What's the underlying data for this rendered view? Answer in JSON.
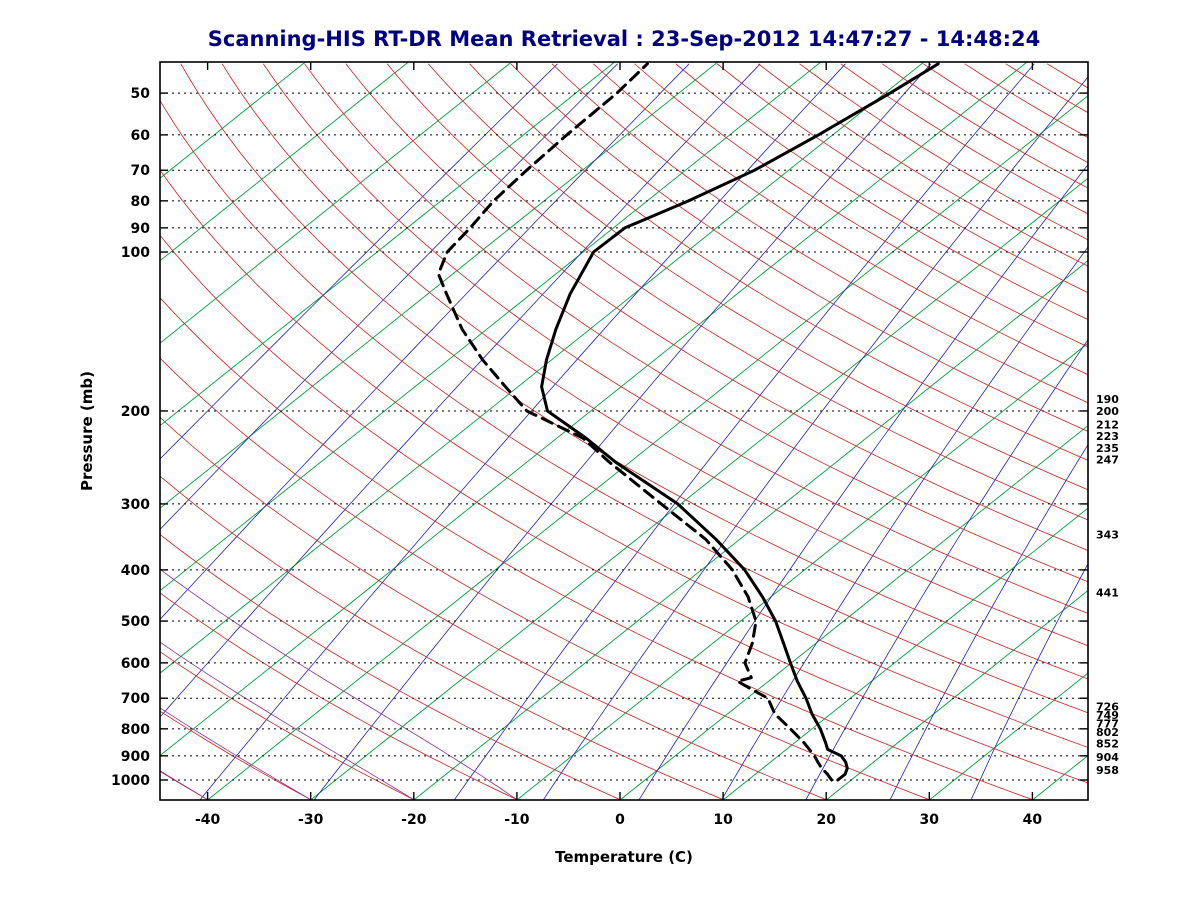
{
  "figure": {
    "background": "#ffffff",
    "title_color": "#000080",
    "axis_color": "#000000",
    "profile_color": "#000000"
  },
  "chart_data": {
    "type": "line",
    "title": "Scanning-HIS RT-DR Mean Retrieval : 23-Sep-2012 14:47:27 - 14:48:24",
    "xlabel": "Temperature (C)",
    "ylabel": "Pressure (mb)",
    "x_ticks": [
      -40,
      -30,
      -20,
      -10,
      0,
      10,
      20,
      30,
      40
    ],
    "y_ticks": [
      50,
      60,
      70,
      80,
      90,
      100,
      200,
      300,
      400,
      500,
      600,
      700,
      800,
      900,
      1000
    ],
    "x_range_bottom_edge": [
      -44.6,
      45.4
    ],
    "pressure_range": [
      44,
      1090
    ],
    "grid": "dotted-isobars",
    "legend": "none",
    "projection": "skew-t-log-p",
    "right_pressure_labels": [
      "190",
      "200",
      "212",
      "223",
      "235",
      "247",
      "343",
      "441",
      "726",
      "749",
      "777",
      "802",
      "852",
      "904",
      "958"
    ],
    "series": [
      {
        "name": "temperature",
        "style": "solid",
        "color": "#000000",
        "points": [
          [
            1000,
            18.7
          ],
          [
            975,
            18.7
          ],
          [
            950,
            18.2
          ],
          [
            925,
            17.3
          ],
          [
            900,
            16.1
          ],
          [
            875,
            14.0
          ],
          [
            850,
            13.0
          ],
          [
            800,
            10.8
          ],
          [
            750,
            8.2
          ],
          [
            700,
            5.7
          ],
          [
            650,
            2.8
          ],
          [
            600,
            -0.1
          ],
          [
            550,
            -3.2
          ],
          [
            500,
            -6.6
          ],
          [
            450,
            -10.8
          ],
          [
            400,
            -15.8
          ],
          [
            350,
            -22.3
          ],
          [
            300,
            -30.3
          ],
          [
            250,
            -41.4
          ],
          [
            225,
            -47.2
          ],
          [
            200,
            -54.2
          ],
          [
            180,
            -57.7
          ],
          [
            160,
            -60.5
          ],
          [
            140,
            -63.3
          ],
          [
            120,
            -66.2
          ],
          [
            100,
            -69.0
          ],
          [
            90,
            -68.9
          ],
          [
            80,
            -66.0
          ],
          [
            70,
            -63.3
          ],
          [
            60,
            -61.4
          ],
          [
            50,
            -59.5
          ],
          [
            44,
            -58.4
          ]
        ]
      },
      {
        "name": "dew_point",
        "style": "dashed",
        "color": "#000000",
        "points": [
          [
            1000,
            18.1
          ],
          [
            975,
            17.0
          ],
          [
            950,
            15.7
          ],
          [
            925,
            14.6
          ],
          [
            900,
            13.5
          ],
          [
            850,
            10.9
          ],
          [
            800,
            7.9
          ],
          [
            750,
            4.6
          ],
          [
            700,
            2.0
          ],
          [
            675,
            -0.5
          ],
          [
            650,
            -3.0
          ],
          [
            640,
            -2.1
          ],
          [
            600,
            -4.5
          ],
          [
            550,
            -6.2
          ],
          [
            500,
            -8.5
          ],
          [
            450,
            -12.2
          ],
          [
            400,
            -17.0
          ],
          [
            350,
            -23.3
          ],
          [
            300,
            -31.9
          ],
          [
            250,
            -42.0
          ],
          [
            225,
            -47.5
          ],
          [
            200,
            -56.2
          ],
          [
            180,
            -61.2
          ],
          [
            160,
            -66.7
          ],
          [
            140,
            -72.4
          ],
          [
            120,
            -78.2
          ],
          [
            110,
            -81.4
          ],
          [
            100,
            -83.2
          ],
          [
            90,
            -83.9
          ],
          [
            80,
            -84.9
          ],
          [
            70,
            -85.4
          ],
          [
            60,
            -85.8
          ],
          [
            50,
            -86.0
          ],
          [
            44,
            -86.6
          ]
        ]
      }
    ],
    "background_lines": {
      "isobar_style": "dotted-black",
      "isotherms": {
        "color": "#00A040",
        "start": -120,
        "end": 40,
        "step": 10
      },
      "mixing_ratio": {
        "color": "#2222BB",
        "values_g_kg": [
          0.001,
          0.003,
          0.01,
          0.03,
          0.1,
          0.3,
          1,
          2,
          4,
          7,
          12,
          20,
          32
        ]
      },
      "dry_adiabats": {
        "color": "#CC2222",
        "surface_temp_start": -100,
        "surface_temp_end": 310,
        "step": 10
      },
      "moist_adiabats": {
        "color": "#883399",
        "surface_temp_start": -100,
        "surface_temp_end": -10,
        "step": 10
      }
    }
  }
}
